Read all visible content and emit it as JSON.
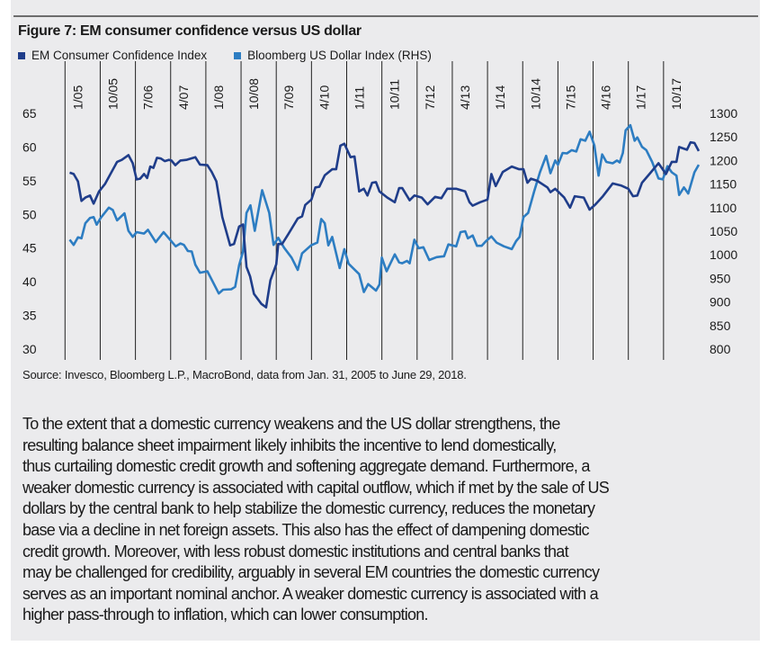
{
  "colors": {
    "em": "#1f3d8a",
    "usd": "#2d7dc2",
    "panel": "#ebebed",
    "grid": "#222222"
  },
  "chart_data": {
    "type": "line",
    "title": "Figure 7: EM consumer confidence versus US dollar",
    "x_unit": "months since Jan 2005",
    "x_tick_labels": [
      "1/05",
      "10/05",
      "7/06",
      "4/07",
      "1/08",
      "10/08",
      "7/09",
      "4/10",
      "1/11",
      "10/11",
      "7/12",
      "4/13",
      "1/14",
      "10/14",
      "7/15",
      "4/16",
      "1/17",
      "10/17"
    ],
    "x_tick_months": [
      0,
      9,
      18,
      27,
      36,
      45,
      54,
      63,
      72,
      81,
      90,
      99,
      108,
      117,
      126,
      135,
      144,
      153
    ],
    "y_left": {
      "ticks": [
        "65",
        "60",
        "55",
        "50",
        "45",
        "40",
        "35",
        "30"
      ],
      "range": [
        30,
        65
      ]
    },
    "y_right": {
      "ticks": [
        "1300",
        "1250",
        "1200",
        "1150",
        "1100",
        "1050",
        "1000",
        "950",
        "900",
        "850",
        "800"
      ],
      "range": [
        800,
        1300
      ]
    },
    "grid": "vertical lines at date ticks",
    "legend_position": "top-left",
    "series": [
      {
        "name": "EM Consumer Confidence Index",
        "axis": "left",
        "points": [
          [
            1.2,
            56.2
          ],
          [
            2.2,
            56
          ],
          [
            3.3,
            54.9
          ],
          [
            4.2,
            52
          ],
          [
            5.2,
            52.5
          ],
          [
            6.4,
            52.8
          ],
          [
            7.3,
            51.6
          ],
          [
            8.7,
            53.4
          ],
          [
            10.2,
            54.5
          ],
          [
            13.3,
            57.8
          ],
          [
            14.5,
            58.1
          ],
          [
            16.2,
            58.8
          ],
          [
            17.3,
            57.6
          ],
          [
            18.3,
            55.2
          ],
          [
            19.2,
            55.3
          ],
          [
            20.2,
            56
          ],
          [
            21,
            55.4
          ],
          [
            21.8,
            57.1
          ],
          [
            22.6,
            56.9
          ],
          [
            23.5,
            58.4
          ],
          [
            24.5,
            58.3
          ],
          [
            25.5,
            57.9
          ],
          [
            26.5,
            58.1
          ],
          [
            27.2,
            58
          ],
          [
            28.2,
            57.3
          ],
          [
            29.5,
            58
          ],
          [
            31,
            58.1
          ],
          [
            33.3,
            58.5
          ],
          [
            34.5,
            57.4
          ],
          [
            36.4,
            57.3
          ],
          [
            37.5,
            56.3
          ],
          [
            38.7,
            54.9
          ],
          [
            40.2,
            49.6
          ],
          [
            42.2,
            45.4
          ],
          [
            43.2,
            45.6
          ],
          [
            44.5,
            48.2
          ],
          [
            45.5,
            48.5
          ],
          [
            46.4,
            42.2
          ],
          [
            47.3,
            40.8
          ],
          [
            48.3,
            38.2
          ],
          [
            50.2,
            36.7
          ],
          [
            51.4,
            36.2
          ],
          [
            52.5,
            40.2
          ],
          [
            54,
            42.6
          ],
          [
            54.5,
            45.6
          ],
          [
            55.5,
            45.6
          ],
          [
            57,
            47
          ],
          [
            59.5,
            49.4
          ],
          [
            60.6,
            49.7
          ],
          [
            61.4,
            51.4
          ],
          [
            63,
            52.2
          ],
          [
            64,
            54
          ],
          [
            65,
            54.1
          ],
          [
            66.4,
            55.8
          ],
          [
            68.3,
            56.7
          ],
          [
            69.3,
            56.7
          ],
          [
            70.4,
            60.2
          ],
          [
            71.4,
            60.5
          ],
          [
            73,
            58.5
          ],
          [
            74,
            58.6
          ],
          [
            75.2,
            53.4
          ],
          [
            76.4,
            53.8
          ],
          [
            77.3,
            52.8
          ],
          [
            78.5,
            54.7
          ],
          [
            79.5,
            54.8
          ],
          [
            80.4,
            53.4
          ],
          [
            82.4,
            52.5
          ],
          [
            84.3,
            51.8
          ],
          [
            85.4,
            53.9
          ],
          [
            86.2,
            53.9
          ],
          [
            88.1,
            52.1
          ],
          [
            89.3,
            52.8
          ],
          [
            91.2,
            52.5
          ],
          [
            92.7,
            51.5
          ],
          [
            94.6,
            52.6
          ],
          [
            96.2,
            52.4
          ],
          [
            97.7,
            53.8
          ],
          [
            100,
            53.8
          ],
          [
            102.3,
            53.4
          ],
          [
            103.4,
            51.8
          ],
          [
            104.2,
            51.3
          ],
          [
            106.1,
            51.8
          ],
          [
            108,
            52.2
          ],
          [
            109,
            56
          ],
          [
            110.1,
            54.2
          ],
          [
            111.9,
            56.3
          ],
          [
            114.2,
            57.1
          ],
          [
            116.1,
            56.7
          ],
          [
            117.2,
            56.7
          ],
          [
            118.2,
            54.7
          ],
          [
            119.1,
            55.3
          ],
          [
            120.7,
            55
          ],
          [
            123.3,
            54
          ],
          [
            124.1,
            53.3
          ],
          [
            125.3,
            53.8
          ],
          [
            127.6,
            52.5
          ],
          [
            129.1,
            51
          ],
          [
            130.3,
            52.7
          ],
          [
            132.6,
            52.5
          ],
          [
            134.1,
            50.7
          ],
          [
            135.6,
            51.5
          ],
          [
            137.5,
            52.7
          ],
          [
            140,
            54.6
          ],
          [
            142.1,
            54.3
          ],
          [
            144,
            53.8
          ],
          [
            145.2,
            52.7
          ],
          [
            146.3,
            52.8
          ],
          [
            147.5,
            54.7
          ],
          [
            149.4,
            56
          ],
          [
            151.7,
            57.6
          ],
          [
            153.6,
            56
          ],
          [
            155.1,
            57.8
          ],
          [
            156.3,
            57.8
          ],
          [
            157,
            60
          ],
          [
            159,
            59.6
          ],
          [
            159.9,
            60.7
          ],
          [
            160.9,
            60.6
          ],
          [
            162,
            59.4
          ]
        ]
      },
      {
        "name": "Bloomberg US Dollar Index (RHS)",
        "axis": "right",
        "points": [
          [
            1.2,
            1032
          ],
          [
            2.2,
            1021
          ],
          [
            3.3,
            1037
          ],
          [
            4.2,
            1035
          ],
          [
            5.2,
            1067
          ],
          [
            6.4,
            1078
          ],
          [
            7.3,
            1080
          ],
          [
            8.1,
            1064
          ],
          [
            9.1,
            1078
          ],
          [
            11.2,
            1100
          ],
          [
            12.2,
            1095
          ],
          [
            13.3,
            1073
          ],
          [
            15.2,
            1088
          ],
          [
            16.2,
            1051
          ],
          [
            17.3,
            1038
          ],
          [
            18.3,
            1048
          ],
          [
            20.2,
            1045
          ],
          [
            21.2,
            1053
          ],
          [
            23.2,
            1027
          ],
          [
            25.2,
            1048
          ],
          [
            28.3,
            1018
          ],
          [
            29.5,
            1024
          ],
          [
            30.4,
            1021
          ],
          [
            31.4,
            1008
          ],
          [
            32.4,
            1007
          ],
          [
            33.3,
            979
          ],
          [
            34.5,
            962
          ],
          [
            36.4,
            965
          ],
          [
            39.3,
            918
          ],
          [
            40.4,
            926
          ],
          [
            42.5,
            927
          ],
          [
            43.5,
            932
          ],
          [
            44.5,
            978
          ],
          [
            45.5,
            1007
          ],
          [
            46.4,
            1089
          ],
          [
            47.4,
            1105
          ],
          [
            48.5,
            1051
          ],
          [
            50.4,
            1137
          ],
          [
            52.2,
            1089
          ],
          [
            53.3,
            1021
          ],
          [
            54.5,
            1036
          ],
          [
            56,
            1015
          ],
          [
            57.9,
            994
          ],
          [
            59.5,
            968
          ],
          [
            60.6,
            1003
          ],
          [
            62.9,
            1020
          ],
          [
            64.5,
            1026
          ],
          [
            65.5,
            1076
          ],
          [
            66.4,
            1067
          ],
          [
            67.3,
            1020
          ],
          [
            68.3,
            1038
          ],
          [
            70.2,
            972
          ],
          [
            71.4,
            1012
          ],
          [
            72.5,
            981
          ],
          [
            75.2,
            959
          ],
          [
            76.4,
            921
          ],
          [
            77.5,
            938
          ],
          [
            79.5,
            924
          ],
          [
            80.4,
            937
          ],
          [
            81,
            994
          ],
          [
            82.2,
            965
          ],
          [
            84.3,
            1001
          ],
          [
            85.4,
            984
          ],
          [
            86.2,
            982
          ],
          [
            87.4,
            987
          ],
          [
            88.1,
            982
          ],
          [
            89.3,
            1032
          ],
          [
            90.4,
            1014
          ],
          [
            91.6,
            1016
          ],
          [
            93.1,
            989
          ],
          [
            95,
            995
          ],
          [
            96.9,
            997
          ],
          [
            98,
            1022
          ],
          [
            100,
            1018
          ],
          [
            101.1,
            1048
          ],
          [
            102.3,
            1050
          ],
          [
            103,
            1035
          ],
          [
            104.2,
            1041
          ],
          [
            105.3,
            1019
          ],
          [
            106.5,
            1019
          ],
          [
            107.6,
            1029
          ],
          [
            109,
            1039
          ],
          [
            110.3,
            1026
          ],
          [
            112.2,
            1018
          ],
          [
            114.2,
            1012
          ],
          [
            115.3,
            1029
          ],
          [
            116.2,
            1038
          ],
          [
            117.2,
            1080
          ],
          [
            118.4,
            1089
          ],
          [
            119.9,
            1134
          ],
          [
            121.4,
            1175
          ],
          [
            123,
            1210
          ],
          [
            124.1,
            1173
          ],
          [
            125.3,
            1200
          ],
          [
            126,
            1191
          ],
          [
            127.2,
            1216
          ],
          [
            128.3,
            1215
          ],
          [
            129.5,
            1222
          ],
          [
            130.7,
            1219
          ],
          [
            131.8,
            1245
          ],
          [
            133,
            1242
          ],
          [
            134.1,
            1261
          ],
          [
            135.3,
            1232
          ],
          [
            136.4,
            1168
          ],
          [
            137.3,
            1213
          ],
          [
            138.4,
            1197
          ],
          [
            140,
            1194
          ],
          [
            141.1,
            1200
          ],
          [
            141.8,
            1196
          ],
          [
            142.6,
            1216
          ],
          [
            143.3,
            1264
          ],
          [
            144.5,
            1275
          ],
          [
            145.6,
            1242
          ],
          [
            146.3,
            1249
          ],
          [
            147.5,
            1229
          ],
          [
            148.6,
            1222
          ],
          [
            150.1,
            1197
          ],
          [
            151.7,
            1162
          ],
          [
            152.8,
            1160
          ],
          [
            154,
            1188
          ],
          [
            155.1,
            1175
          ],
          [
            156.3,
            1168
          ],
          [
            157,
            1127
          ],
          [
            158.2,
            1143
          ],
          [
            159.3,
            1130
          ],
          [
            160.9,
            1175
          ],
          [
            162,
            1191
          ]
        ]
      }
    ],
    "source": "Source: Invesco, Bloomberg L.P., MacroBond, data from Jan. 31, 2005 to June 29, 2018."
  },
  "paragraph_lines": [
    "To the extent that a domestic currency weakens and the US dollar strengthens, the",
    "resulting balance sheet impairment likely inhibits the incentive to lend domestically,",
    "thus curtailing domestic credit growth and softening aggregate demand. Furthermore, a",
    "weaker domestic currency is associated with capital outflow, which if met by the sale of US",
    "dollars by the central bank to help stabilize the domestic currency, reduces the monetary",
    "base via a decline in net foreign assets. This also has the effect of dampening domestic",
    "credit growth. Moreover, with less robust domestic institutions and central banks that",
    "may be challenged for credibility, arguably in several EM countries the domestic currency",
    "serves as an important nominal anchor. A weaker domestic currency is associated with a",
    "higher pass-through to inflation, which can lower consumption."
  ]
}
